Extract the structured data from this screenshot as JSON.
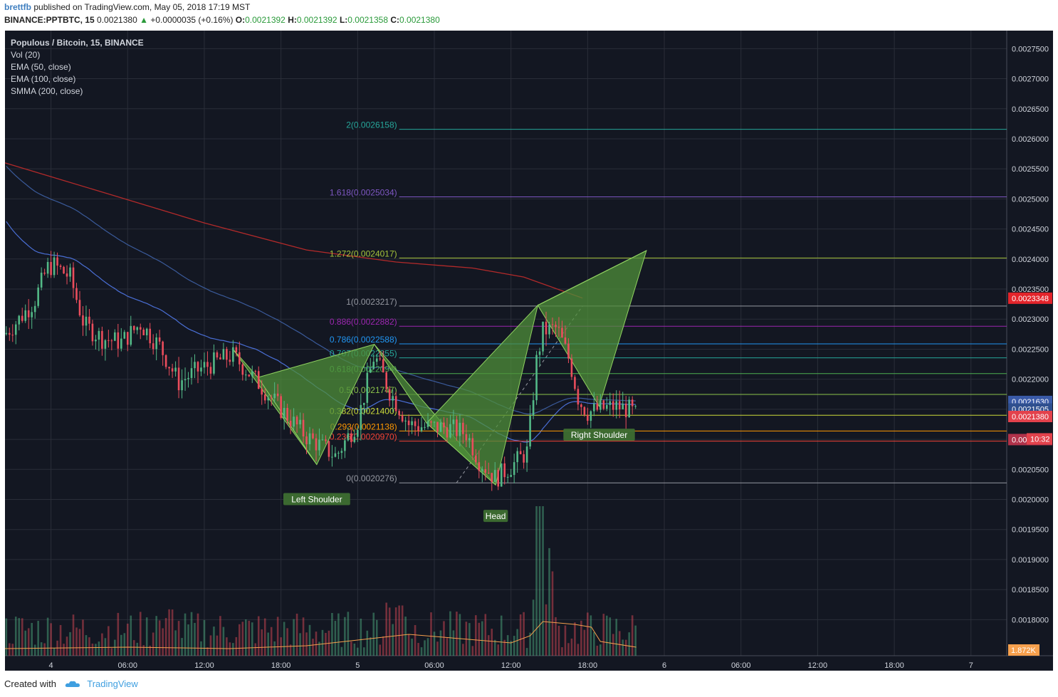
{
  "header": {
    "user": "brettfb",
    "published": "published on TradingView.com, May 05, 2018 17:19 MST",
    "symbol": "BINANCE:PPTBTC, 15",
    "last": "0.0021380",
    "arrow": "▲",
    "change": "+0.0000035 (+0.16%)",
    "o_label": "O:",
    "o": "0.0021392",
    "h_label": "H:",
    "h": "0.0021392",
    "l_label": "L:",
    "l": "0.0021358",
    "c_label": "C:",
    "c": "0.0021380"
  },
  "legend": {
    "title": "Populous / Bitcoin, 15, BINANCE",
    "vol": "Vol (20)",
    "ema50": "EMA (50, close)",
    "ema100": "EMA (100, close)",
    "smma": "SMMA (200, close)"
  },
  "footer": {
    "created": "Created with",
    "brand": "TradingView"
  },
  "colors": {
    "background": "#131722",
    "grid": "#2a2e39",
    "up": "#53b987",
    "down": "#eb4d5c",
    "ema50": "#4a6fd6",
    "ema100": "#3a5a9a",
    "smma": "#b22a2a",
    "pattern_fill": "#4f8f3a",
    "pattern_line": "#8fd060",
    "volume_ma": "#f6a04d"
  },
  "chart_data": {
    "type": "candlestick",
    "title": "Populous / Bitcoin, 15, BINANCE",
    "ylim": [
      0.00174,
      0.00278
    ],
    "y_ticks": [
      "0.0027500",
      "0.0027000",
      "0.0026500",
      "0.0026000",
      "0.0025500",
      "0.0025000",
      "0.0024500",
      "0.0024000",
      "0.0023500",
      "0.0023000",
      "0.0022500",
      "0.0022000",
      "0.0021500",
      "0.0021000",
      "0.0020500",
      "0.0020000",
      "0.0019500",
      "0.0019000",
      "0.0018500",
      "0.0018000"
    ],
    "y_tick_values": [
      0.00275,
      0.0027,
      0.00265,
      0.0026,
      0.00255,
      0.0025,
      0.00245,
      0.0024,
      0.00235,
      0.0023,
      0.00225,
      0.0022,
      0.00215,
      0.0021,
      0.00205,
      0.002,
      0.00195,
      0.0019,
      0.00185,
      0.0018
    ],
    "x_ticks": [
      "4",
      "06:00",
      "12:00",
      "18:00",
      "5",
      "06:00",
      "12:00",
      "18:00",
      "6",
      "06:00",
      "12:00",
      "18:00",
      "7"
    ],
    "x_tick_hours": [
      0,
      6,
      12,
      18,
      24,
      30,
      36,
      42,
      48,
      54,
      60,
      66,
      72
    ],
    "x_range_hours": [
      -3.6,
      74.8
    ],
    "last_bar_hour": 41.6,
    "fib_levels": [
      {
        "label": "2(0.0026158)",
        "value": 0.0026158,
        "color": "#26a69a"
      },
      {
        "label": "1.618(0.0025034)",
        "value": 0.0025034,
        "color": "#7e57c2"
      },
      {
        "label": "1.272(0.0024017)",
        "value": 0.0024017,
        "color": "#a5c33a"
      },
      {
        "label": "1(0.0023217)",
        "value": 0.0023217,
        "color": "#9598a1"
      },
      {
        "label": "0.886(0.0022882)",
        "value": 0.0022882,
        "color": "#9c27b0"
      },
      {
        "label": "0.786(0.0022588)",
        "value": 0.0022588,
        "color": "#2196f3"
      },
      {
        "label": "0.707(0.0022355)",
        "value": 0.0022355,
        "color": "#26a69a"
      },
      {
        "label": "0.618(0.0022094)",
        "value": 0.0022094,
        "color": "#4caf50"
      },
      {
        "label": "0.5(0.0021747)",
        "value": 0.0021747,
        "color": "#8bc34a"
      },
      {
        "label": "0.382(0.0021400)",
        "value": 0.00214,
        "color": "#cddc39"
      },
      {
        "label": "0.293(0.0021138)",
        "value": 0.0021138,
        "color": "#ff9800"
      },
      {
        "label": "0.236(0.0020970)",
        "value": 0.002097,
        "color": "#f44336"
      },
      {
        "label": "0(0.0020276)",
        "value": 0.0020276,
        "color": "#9598a1"
      }
    ],
    "price_badges": [
      {
        "text": "0.0023348",
        "value": 0.0023348,
        "color": "#e3242b"
      },
      {
        "text": "0.0021630",
        "value": 0.002163,
        "color": "#3a5aa8"
      },
      {
        "text": "0.0021505",
        "value": 0.0021505,
        "color": "#2f4f8f"
      },
      {
        "text": "0.0021380",
        "value": 0.002138,
        "color": "#e3424c"
      },
      {
        "text": "0.00",
        "value": 0.0020996,
        "color": "#b0324a"
      }
    ],
    "countdown": "10:32",
    "volume_badge": "1.872K",
    "annotations": [
      "Left Shoulder",
      "Head",
      "Right Shoulder"
    ],
    "pattern_points": [
      {
        "h": 14.2,
        "v": 0.002251
      },
      {
        "h": 16.2,
        "v": 0.002203
      },
      {
        "h": 25.3,
        "v": 0.002258
      },
      {
        "h": 29.4,
        "v": 0.002127
      },
      {
        "h": 34.8,
        "v": 0.002024
      },
      {
        "h": 20.8,
        "v": 0.002058
      },
      {
        "h": 34.8,
        "v": 0.002024
      },
      {
        "h": 38.1,
        "v": 0.002323
      },
      {
        "h": 45.4,
        "v": 0.002388
      },
      {
        "h": 46.6,
        "v": 0.002414
      },
      {
        "h": 42.9,
        "v": 0.002155
      }
    ]
  }
}
